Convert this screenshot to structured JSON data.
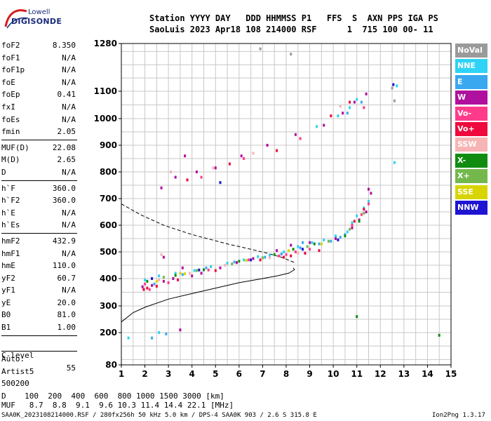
{
  "logo": {
    "top": "Lowell",
    "bottom": "DIGISONDE"
  },
  "header": {
    "line1": "Station YYYY DAY   DDD HHMMSS P1   FFS  S  AXN PPS IGA PS",
    "line2": "SaoLuis 2023 Apr18 108 214000 RSF      1  715 100 00- 11"
  },
  "params": {
    "group1": [
      {
        "label": "foF2",
        "value": "8.350"
      },
      {
        "label": "foF1",
        "value": "N/A"
      },
      {
        "label": "foF1p",
        "value": "N/A"
      },
      {
        "label": "foE",
        "value": "N/A"
      },
      {
        "label": "foEp",
        "value": "0.41"
      },
      {
        "label": "fxI",
        "value": "N/A"
      },
      {
        "label": "foEs",
        "value": "N/A"
      },
      {
        "label": "fmin",
        "value": "2.05"
      }
    ],
    "group2": [
      {
        "label": "MUF(D)",
        "value": "22.08"
      },
      {
        "label": "M(D)",
        "value": "2.65"
      },
      {
        "label": "D",
        "value": "N/A"
      }
    ],
    "group3": [
      {
        "label": "h`F",
        "value": "360.0"
      },
      {
        "label": "h`F2",
        "value": "360.0"
      },
      {
        "label": "h`E",
        "value": "N/A"
      },
      {
        "label": "h`Es",
        "value": "N/A"
      }
    ],
    "group4": [
      {
        "label": "hmF2",
        "value": "432.9"
      },
      {
        "label": "hmF1",
        "value": "N/A"
      },
      {
        "label": "hmE",
        "value": "110.0"
      },
      {
        "label": "yF2",
        "value": "60.7"
      },
      {
        "label": "yF1",
        "value": "N/A"
      },
      {
        "label": "yE",
        "value": "20.0"
      },
      {
        "label": "B0",
        "value": "81.0"
      },
      {
        "label": "B1",
        "value": "1.00"
      }
    ],
    "clevel": {
      "label": "C-level",
      "value": "55"
    },
    "auto": [
      "Auto:",
      "Artist5",
      "500200"
    ]
  },
  "legend": [
    {
      "label": "NoVal",
      "color": "#9a9a9a"
    },
    {
      "label": "NNE",
      "color": "#2ed3f5"
    },
    {
      "label": "E",
      "color": "#3aa8f0"
    },
    {
      "label": "W",
      "color": "#b0109e"
    },
    {
      "label": "Vo-",
      "color": "#ff3c8c"
    },
    {
      "label": "Vo+",
      "color": "#ee0a3c"
    },
    {
      "label": "SSW",
      "color": "#f6b4b4"
    },
    {
      "label": "X-",
      "color": "#118c11"
    },
    {
      "label": "X+",
      "color": "#74b84c"
    },
    {
      "label": "SSE",
      "color": "#d8d400"
    },
    {
      "label": "NNW",
      "color": "#1e14d2"
    }
  ],
  "footer": {
    "d_row": "D    100  200  400  600  800 1000 1500 3000 [km]",
    "muf_row": "MUF   8.7  8.8  9.1  9.6 10.3 11.4 14.4 22.1 [MHz]",
    "info": "SAA0K_2023108214000.RSF / 280fx256h 50 kHz 5.0 km / DPS-4 SAA0K 903 / 2.6 S 315.8 E",
    "version": "Ion2Png 1.3.17"
  },
  "chart_data": {
    "type": "scatter",
    "xlim": [
      1,
      15
    ],
    "ylim": [
      80,
      1280
    ],
    "x_ticks": [
      1,
      2,
      3,
      4,
      5,
      6,
      7,
      8,
      9,
      10,
      11,
      12,
      13,
      14,
      15
    ],
    "y_ticks": [
      80,
      200,
      300,
      400,
      500,
      600,
      700,
      800,
      900,
      1000,
      1100,
      1280
    ],
    "profile_solid": [
      [
        1,
        240
      ],
      [
        1.5,
        275
      ],
      [
        2,
        295
      ],
      [
        3,
        325
      ],
      [
        4,
        345
      ],
      [
        5,
        365
      ],
      [
        6,
        385
      ],
      [
        7,
        400
      ],
      [
        7.6,
        410
      ],
      [
        8.1,
        420
      ],
      [
        8.35,
        432.9
      ],
      [
        8.3,
        440
      ]
    ],
    "profile_dashed": [
      [
        1,
        680
      ],
      [
        1.8,
        640
      ],
      [
        2.8,
        600
      ],
      [
        4,
        565
      ],
      [
        5.5,
        530
      ],
      [
        6.5,
        510
      ],
      [
        7.2,
        495
      ],
      [
        7.8,
        480
      ],
      [
        8.35,
        460
      ]
    ],
    "series": [
      {
        "name": "NoVal",
        "points": [
          [
            6.9,
            1260
          ],
          [
            8.2,
            1240
          ],
          [
            12.5,
            1112
          ],
          [
            12.6,
            1065
          ]
        ]
      },
      {
        "name": "NNE",
        "points": [
          [
            2.0,
            395
          ],
          [
            2.6,
            410
          ],
          [
            3.3,
            420
          ],
          [
            4.1,
            430
          ],
          [
            4.8,
            445
          ],
          [
            5.5,
            458
          ],
          [
            6.2,
            470
          ],
          [
            6.8,
            482
          ],
          [
            7.3,
            488
          ],
          [
            7.9,
            500
          ],
          [
            8.5,
            520
          ],
          [
            9.1,
            535
          ],
          [
            9.6,
            545
          ],
          [
            10.1,
            560
          ],
          [
            10.6,
            575
          ],
          [
            10.8,
            610
          ],
          [
            11.0,
            635
          ],
          [
            11.3,
            665
          ],
          [
            11.5,
            690
          ],
          [
            9.3,
            970
          ],
          [
            10.2,
            1010
          ],
          [
            10.7,
            1040
          ],
          [
            11.0,
            1070
          ],
          [
            12.7,
            1120
          ],
          [
            12.6,
            835
          ],
          [
            2.6,
            200
          ],
          [
            1.3,
            180
          ]
        ]
      },
      {
        "name": "E",
        "points": [
          [
            2.4,
            380
          ],
          [
            3.6,
            415
          ],
          [
            4.6,
            440
          ],
          [
            5.8,
            462
          ],
          [
            7.1,
            480
          ],
          [
            7.8,
            492
          ],
          [
            8.6,
            515
          ],
          [
            9.4,
            530
          ],
          [
            9.9,
            540
          ],
          [
            10.3,
            555
          ],
          [
            10.5,
            565
          ],
          [
            8.7,
            535
          ],
          [
            10.6,
            1020
          ],
          [
            11.2,
            1060
          ],
          [
            2.9,
            195
          ],
          [
            2.3,
            180
          ]
        ]
      },
      {
        "name": "W",
        "points": [
          [
            1.9,
            370
          ],
          [
            2.3,
            375
          ],
          [
            2.8,
            390
          ],
          [
            3.2,
            400
          ],
          [
            3.6,
            440
          ],
          [
            4.0,
            410
          ],
          [
            4.4,
            420
          ],
          [
            5.2,
            440
          ],
          [
            5.9,
            460
          ],
          [
            6.6,
            475
          ],
          [
            7.6,
            505
          ],
          [
            8.2,
            525
          ],
          [
            9.0,
            535
          ],
          [
            10.1,
            550
          ],
          [
            10.8,
            590
          ],
          [
            11.1,
            620
          ],
          [
            11.4,
            650
          ],
          [
            11.6,
            720
          ],
          [
            11.5,
            735
          ],
          [
            3.3,
            780
          ],
          [
            4.2,
            800
          ],
          [
            5.0,
            815
          ],
          [
            6.1,
            860
          ],
          [
            7.2,
            900
          ],
          [
            8.4,
            940
          ],
          [
            9.6,
            975
          ],
          [
            10.4,
            1020
          ],
          [
            10.9,
            1060
          ],
          [
            11.4,
            1090
          ],
          [
            3.5,
            210
          ],
          [
            2.8,
            480
          ],
          [
            2.7,
            740
          ],
          [
            3.7,
            860
          ]
        ]
      },
      {
        "name": "Vo-",
        "points": [
          [
            2.2,
            360
          ],
          [
            3.0,
            385
          ],
          [
            4.7,
            432
          ],
          [
            6.4,
            470
          ],
          [
            7.7,
            485
          ],
          [
            8.0,
            490
          ],
          [
            8.4,
            500
          ],
          [
            9.0,
            510
          ],
          [
            10.8,
            600
          ],
          [
            11.2,
            640
          ],
          [
            11.5,
            680
          ],
          [
            4.4,
            780
          ],
          [
            6.2,
            850
          ],
          [
            8.6,
            925
          ],
          [
            11.3,
            1040
          ],
          [
            2.0,
            380
          ]
        ]
      },
      {
        "name": "Vo+",
        "points": [
          [
            1.95,
            360
          ],
          [
            2.5,
            372
          ],
          [
            3.4,
            395
          ],
          [
            5.0,
            430
          ],
          [
            6.9,
            470
          ],
          [
            7.9,
            480
          ],
          [
            8.2,
            485
          ],
          [
            8.8,
            495
          ],
          [
            9.4,
            505
          ],
          [
            10.9,
            615
          ],
          [
            11.3,
            660
          ],
          [
            3.8,
            770
          ],
          [
            5.6,
            830
          ],
          [
            7.6,
            880
          ],
          [
            9.9,
            1010
          ],
          [
            10.7,
            1060
          ],
          [
            2.1,
            365
          ]
        ]
      },
      {
        "name": "SSW",
        "points": [
          [
            2.6,
            395
          ],
          [
            3.9,
            420
          ],
          [
            5.4,
            450
          ],
          [
            7.3,
            478
          ],
          [
            8.5,
            495
          ],
          [
            3.1,
            800
          ],
          [
            4.9,
            815
          ],
          [
            6.6,
            870
          ],
          [
            10.3,
            1045
          ],
          [
            2.7,
            490
          ]
        ]
      },
      {
        "name": "X-",
        "points": [
          [
            2.1,
            390
          ],
          [
            3.3,
            412
          ],
          [
            4.5,
            433
          ],
          [
            6.0,
            465
          ],
          [
            7.5,
            490
          ],
          [
            8.3,
            510
          ],
          [
            9.2,
            530
          ],
          [
            11.1,
            615
          ],
          [
            10.5,
            560
          ],
          [
            14.5,
            190
          ],
          [
            11.0,
            260
          ]
        ]
      },
      {
        "name": "X+",
        "points": [
          [
            2.8,
            405
          ],
          [
            4.2,
            430
          ],
          [
            5.7,
            455
          ],
          [
            7.0,
            478
          ],
          [
            8.9,
            520
          ],
          [
            9.8,
            540
          ],
          [
            11.3,
            645
          ],
          [
            10.7,
            585
          ]
        ]
      },
      {
        "name": "SSE",
        "points": [
          [
            2.5,
            390
          ],
          [
            3.7,
            418
          ],
          [
            6.3,
            468
          ],
          [
            8.1,
            505
          ],
          [
            9.5,
            530
          ],
          [
            3.5,
            420
          ]
        ]
      },
      {
        "name": "NNW",
        "points": [
          [
            2.3,
            400
          ],
          [
            4.3,
            432
          ],
          [
            6.5,
            470
          ],
          [
            8.7,
            510
          ],
          [
            10.2,
            545
          ],
          [
            12.55,
            1125
          ],
          [
            5.2,
            760
          ]
        ]
      }
    ]
  }
}
